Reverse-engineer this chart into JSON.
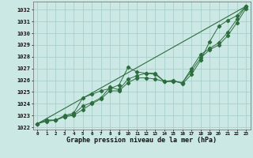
{
  "xlabel": "Graphe pression niveau de la mer (hPa)",
  "xlim": [
    -0.5,
    23.5
  ],
  "ylim": [
    1021.8,
    1032.7
  ],
  "yticks": [
    1022,
    1023,
    1024,
    1025,
    1026,
    1027,
    1028,
    1029,
    1030,
    1031,
    1032
  ],
  "xticks": [
    0,
    1,
    2,
    3,
    4,
    5,
    6,
    7,
    8,
    9,
    10,
    11,
    12,
    13,
    14,
    15,
    16,
    17,
    18,
    19,
    20,
    21,
    22,
    23
  ],
  "bg_color": "#cce8e4",
  "grid_color": "#aad0cc",
  "line_color": "#2d6e3e",
  "line1": [
    1022.3,
    1022.6,
    1022.6,
    1023.0,
    1023.2,
    1024.5,
    1024.8,
    1025.1,
    1025.3,
    1025.6,
    1027.1,
    1026.7,
    1026.6,
    1026.6,
    1025.9,
    1026.0,
    1025.7,
    1026.5,
    1027.7,
    1029.3,
    1030.6,
    1031.1,
    1031.5,
    1032.3
  ],
  "line2": [
    1022.3,
    1022.6,
    1022.6,
    1022.9,
    1023.1,
    1023.8,
    1024.1,
    1024.5,
    1025.4,
    1025.2,
    1026.1,
    1026.4,
    1026.6,
    1026.5,
    1025.9,
    1025.9,
    1025.8,
    1027.0,
    1028.2,
    1028.7,
    1029.2,
    1030.1,
    1031.2,
    1032.3
  ],
  "line3": [
    1022.3,
    1022.5,
    1022.6,
    1022.9,
    1023.0,
    1023.5,
    1024.0,
    1024.4,
    1025.1,
    1025.1,
    1025.8,
    1026.2,
    1026.2,
    1026.1,
    1025.9,
    1025.9,
    1025.8,
    1026.8,
    1027.9,
    1028.6,
    1029.0,
    1029.8,
    1030.9,
    1032.1
  ],
  "ref_line": [
    [
      0,
      23
    ],
    [
      1022.3,
      1032.3
    ]
  ]
}
